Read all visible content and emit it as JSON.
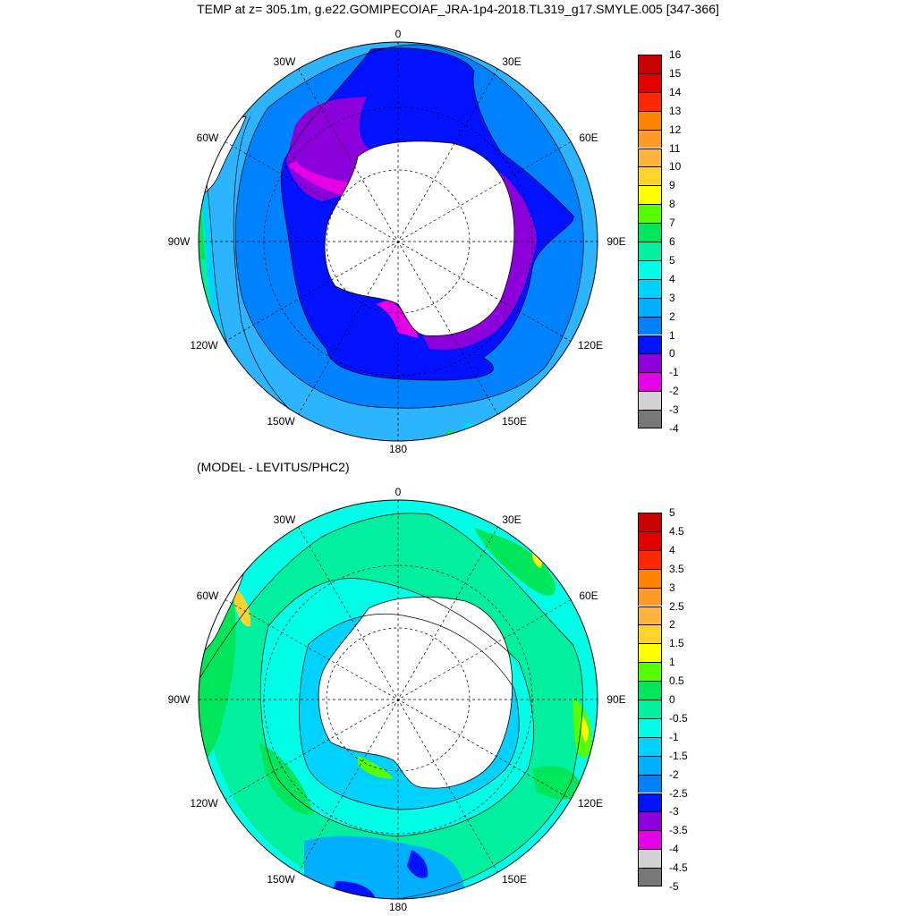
{
  "title": "TEMP at z= 305.1m, g.e22.GOMIPECOIAF_JRA-1p4-2018.TL319_g17.SMYLE.005 [347-366]",
  "subtitle": "(MODEL - LEVITUS/PHC2)",
  "longitude_labels": [
    "0",
    "30E",
    "60E",
    "90E",
    "120E",
    "150E",
    "180",
    "150W",
    "120W",
    "90W",
    "60W",
    "30W"
  ],
  "colors": {
    "land": "#ffffff",
    "outline": "#000000",
    "map1_ocean_base": "#2db4ff"
  },
  "colorbar_top": {
    "ticks": [
      "16",
      "15",
      "14",
      "13",
      "12",
      "11",
      "10",
      "9",
      "8",
      "7",
      "6",
      "5",
      "4",
      "3",
      "2",
      "1",
      "0",
      "-1",
      "-2",
      "-3",
      "-4"
    ],
    "colors": [
      "#c80000",
      "#e10000",
      "#ff2800",
      "#ff8200",
      "#ff9a28",
      "#ffb43c",
      "#ffd22d",
      "#ffff00",
      "#55ff00",
      "#00e65a",
      "#00f0a0",
      "#00ffe6",
      "#00d2ff",
      "#00afff",
      "#0082ff",
      "#0012ff",
      "#8c00dc",
      "#e600e6",
      "#d2d2d2",
      "#787878"
    ]
  },
  "colorbar_bottom": {
    "ticks": [
      "5",
      "4.5",
      "4",
      "3.5",
      "3",
      "2.5",
      "2",
      "1.5",
      "1",
      "0.5",
      "0",
      "-0.5",
      "-1",
      "-1.5",
      "-2",
      "-2.5",
      "-3",
      "-3.5",
      "-4",
      "-4.5",
      "-5"
    ],
    "colors": [
      "#c80000",
      "#e10000",
      "#ff2800",
      "#ff8200",
      "#ff9a28",
      "#ffb43c",
      "#ffd22d",
      "#ffff00",
      "#55ff00",
      "#00e65a",
      "#00f0a0",
      "#00ffe6",
      "#00d2ff",
      "#00afff",
      "#0082ff",
      "#0012ff",
      "#8c00dc",
      "#e600e6",
      "#d2d2d2",
      "#787878"
    ]
  }
}
